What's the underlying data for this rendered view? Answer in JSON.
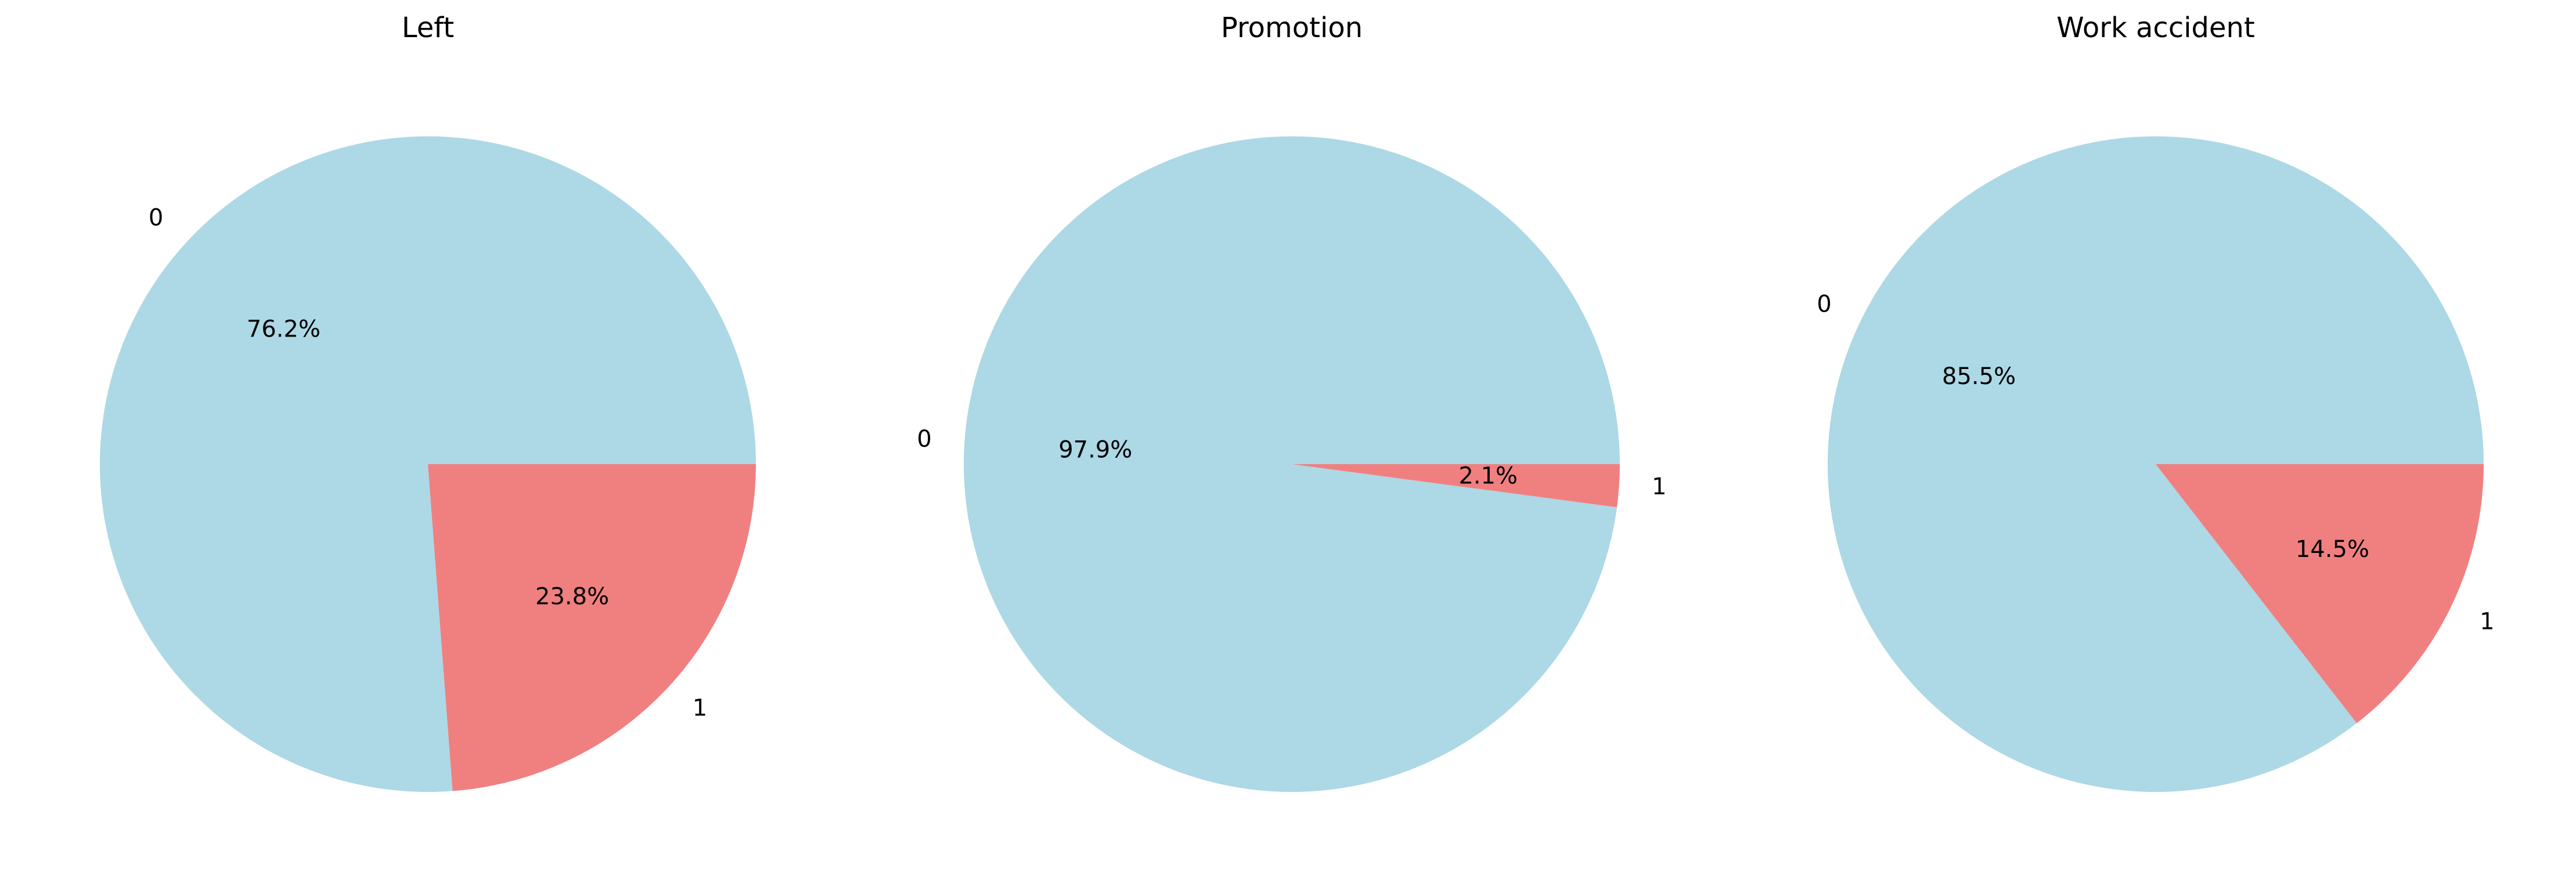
{
  "chart_data": [
    {
      "type": "pie",
      "title": "Left",
      "labels": [
        "0",
        "1"
      ],
      "values": [
        76.2,
        23.8
      ],
      "percent_labels": [
        "76.2%",
        "23.8%"
      ],
      "colors": [
        "#add8e6",
        "#f08080"
      ]
    },
    {
      "type": "pie",
      "title": "Promotion",
      "labels": [
        "0",
        "1"
      ],
      "values": [
        97.9,
        2.1
      ],
      "percent_labels": [
        "97.9%",
        "2.1%"
      ],
      "colors": [
        "#add8e6",
        "#f08080"
      ]
    },
    {
      "type": "pie",
      "title": "Work accident",
      "labels": [
        "0",
        "1"
      ],
      "values": [
        85.5,
        14.5
      ],
      "percent_labels": [
        "85.5%",
        "14.5%"
      ],
      "colors": [
        "#add8e6",
        "#f08080"
      ]
    }
  ]
}
